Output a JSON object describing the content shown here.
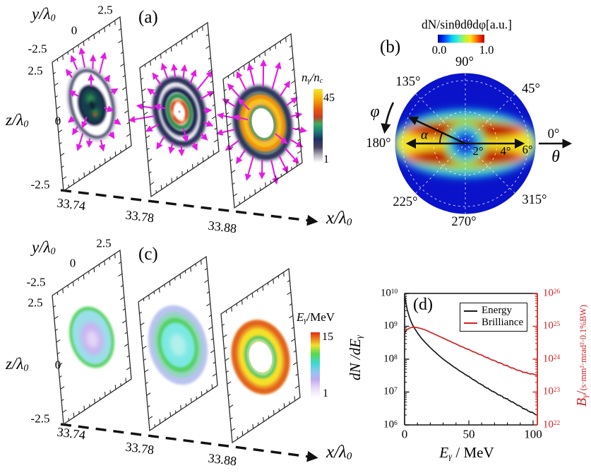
{
  "colors": {
    "magenta": "#e61ae6",
    "red": "#d42222",
    "polar_blue": "#0a13c9",
    "black": "#111111"
  },
  "panel_a": {
    "label": "(a)",
    "y_label": "y/λ",
    "y_label_sub": "0",
    "z_label": "z/λ",
    "z_label_sub": "0",
    "x_label": "x/λ",
    "x_label_sub": "0",
    "y_ticks": [
      "2.5",
      "0",
      "-2.5"
    ],
    "z_ticks": [
      "2.5",
      "0",
      "-2.5"
    ],
    "x_ticks": [
      "33.74",
      "33.78",
      "33.88"
    ],
    "colorbar": {
      "p1": "n",
      "s1": "γ",
      "p2": "/n",
      "s2": "c",
      "max": "45",
      "min": "1"
    }
  },
  "panel_b": {
    "label": "(b)",
    "cb_title": "dN/sinθdθdφ[a.u.]",
    "cb_min": "0.0",
    "cb_max": "1.0",
    "a0": "0°",
    "a45": "45°",
    "a90": "90°",
    "a135": "135°",
    "a180": "180°",
    "a225": "225°",
    "a270": "270°",
    "a315": "315°",
    "r2": "2°",
    "r4": "4°",
    "r6": "6°",
    "theta": "θ",
    "phi": "φ",
    "alpha": "α"
  },
  "panel_c": {
    "label": "(c)",
    "y_label": "y/λ",
    "y_label_sub": "0",
    "z_label": "z/λ",
    "z_label_sub": "0",
    "x_label": "x/λ",
    "x_label_sub": "0",
    "y_ticks": [
      "2.5",
      "0",
      "-2.5"
    ],
    "z_ticks": [
      "2.5",
      "0",
      "-2.5"
    ],
    "x_ticks": [
      "33.74",
      "33.78",
      "33.88"
    ],
    "colorbar": {
      "p1": "E",
      "s1": "γ",
      "p2": "/MeV",
      "max": "15",
      "min": "1"
    }
  },
  "panel_d": {
    "label": "(d)",
    "x_ticks": [
      "0",
      "50",
      "100"
    ],
    "x_label_p1": "E",
    "x_label_s1": "γ",
    "x_label_p2": " / MeV",
    "yl_p1": "dN /dE",
    "yl_s1": "γ",
    "yr_p1": "B",
    "yr_s1": "γ",
    "yr_p2": "/",
    "yr_p3": "(s·mm²·mrad²·0.1%BW)",
    "y_left_ticks": [
      {
        "b": "10",
        "e": "10"
      },
      {
        "b": "10",
        "e": "9"
      },
      {
        "b": "10",
        "e": "8"
      },
      {
        "b": "10",
        "e": "7"
      },
      {
        "b": "10",
        "e": "6"
      }
    ],
    "y_right_ticks": [
      {
        "b": "10",
        "e": "26"
      },
      {
        "b": "10",
        "e": "25"
      },
      {
        "b": "10",
        "e": "24"
      },
      {
        "b": "10",
        "e": "23"
      },
      {
        "b": "10",
        "e": "22"
      }
    ]
  },
  "chart_data": [
    {
      "id": "panel_a",
      "type": "heatmap",
      "title": "(a)",
      "subject": "photon density transverse slices",
      "x_positions": [
        33.74,
        33.78,
        33.88
      ],
      "x_unit": "x/λ0",
      "y_range": [
        -2.5,
        2.5
      ],
      "z_range": [
        -2.5,
        2.5
      ],
      "colorbar": {
        "label": "nγ/nc",
        "min": 1,
        "max": 45
      },
      "note": "ring-shaped photon density with magenta momentum arrows; ring radius and peak density grow with x"
    },
    {
      "id": "panel_b",
      "type": "heatmap",
      "projection": "polar",
      "title": "(b)",
      "colorbar": {
        "label": "dN/sinθdθdφ[a.u.]",
        "min": 0.0,
        "max": 1.0
      },
      "angle_ticks_deg": [
        0,
        45,
        90,
        135,
        180,
        225,
        270,
        315
      ],
      "radial_ticks_deg": [
        2,
        4,
        6
      ],
      "note": "two red emission lobes along φ≈0° and 180° peaking near θ≈2–5°, blue minimum at center, angle α marked from axis"
    },
    {
      "id": "panel_c",
      "type": "heatmap",
      "title": "(c)",
      "subject": "photon energy transverse slices",
      "x_positions": [
        33.74,
        33.78,
        33.88
      ],
      "x_unit": "x/λ0",
      "y_range": [
        -2.5,
        2.5
      ],
      "z_range": [
        -2.5,
        2.5
      ],
      "colorbar": {
        "label": "Eγ/MeV",
        "min": 1,
        "max": 15
      },
      "note": "mean photon energy increases with x; last slice is a hollow ring of 10–15 MeV photons"
    },
    {
      "id": "panel_d",
      "type": "line",
      "title": "(d)",
      "xlabel": "Eγ / MeV",
      "x_range": [
        0,
        103
      ],
      "left_axis": {
        "label": "dN/dEγ",
        "log10_range": [
          6,
          10
        ]
      },
      "right_axis": {
        "label": "Bγ/(s·mm²·mrad²·0.1%BW)",
        "log10_range": [
          22,
          26
        ],
        "color": "#d42222"
      },
      "legend_position": "top-right",
      "series": [
        {
          "name": "Energy",
          "axis": "left",
          "color": "#1a1a1a",
          "x": [
            0.3,
            1,
            2,
            3,
            4,
            5,
            6,
            8,
            10,
            13,
            16,
            20,
            25,
            30,
            35,
            40,
            45,
            50,
            55,
            60,
            65,
            70,
            75,
            80,
            85,
            90,
            95,
            100,
            103
          ],
          "log10y": [
            9.9,
            9.72,
            9.52,
            9.37,
            9.25,
            9.15,
            9.06,
            8.92,
            8.8,
            8.64,
            8.51,
            8.35,
            8.17,
            8.0,
            7.86,
            7.72,
            7.59,
            7.47,
            7.34,
            7.22,
            7.1,
            6.99,
            6.88,
            6.78,
            6.67,
            6.56,
            6.45,
            6.36,
            6.3
          ]
        },
        {
          "name": "Brilliance",
          "axis": "right",
          "color": "#d42222",
          "x": [
            0.3,
            1,
            2,
            4,
            6,
            8,
            10,
            13,
            16,
            20,
            25,
            30,
            35,
            40,
            45,
            50,
            55,
            60,
            65,
            70,
            75,
            80,
            85,
            90,
            95,
            100,
            103
          ],
          "log10y": [
            24.8,
            24.86,
            24.9,
            24.95,
            24.97,
            24.97,
            24.96,
            24.93,
            24.89,
            24.82,
            24.73,
            24.64,
            24.55,
            24.46,
            24.37,
            24.29,
            24.2,
            24.12,
            24.03,
            23.95,
            23.87,
            23.79,
            23.71,
            23.64,
            23.58,
            23.54,
            23.52
          ]
        }
      ]
    }
  ]
}
